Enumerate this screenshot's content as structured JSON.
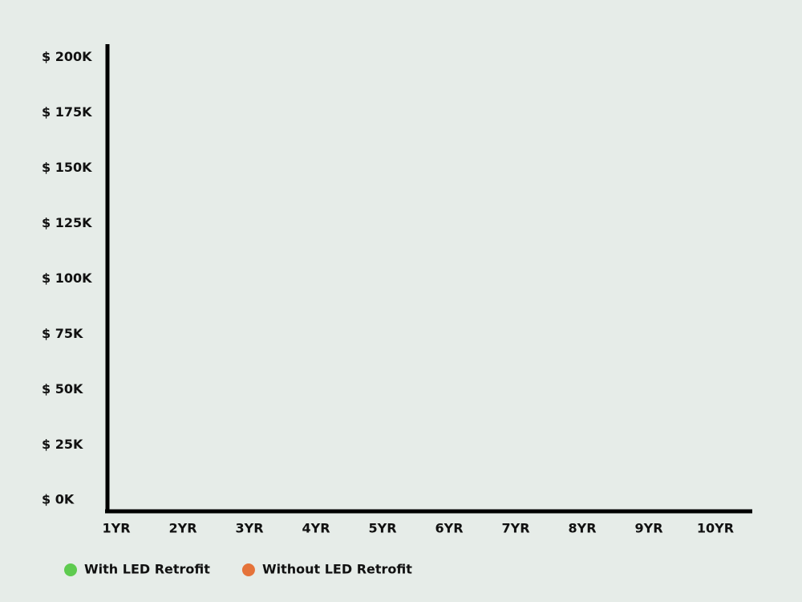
{
  "chart_data": {
    "type": "line",
    "categories": [
      "1YR",
      "2YR",
      "3YR",
      "4YR",
      "5YR",
      "6YR",
      "7YR",
      "8YR",
      "9YR",
      "10YR"
    ],
    "series": [
      {
        "name": "With LED Retrofit",
        "color": "#5ecb4f"
      },
      {
        "name": "Without LED Retrofit",
        "color": "#e5733a"
      }
    ],
    "ylim": [
      -5000,
      206000
    ],
    "yticks": [
      {
        "value": 0,
        "label": "$ 0K"
      },
      {
        "value": 25000,
        "label": "$ 25K"
      },
      {
        "value": 50000,
        "label": "$ 50K"
      },
      {
        "value": 75000,
        "label": "$ 75K"
      },
      {
        "value": 100000,
        "label": "$ 100K"
      },
      {
        "value": 125000,
        "label": "$ 125K"
      },
      {
        "value": 150000,
        "label": "$ 150K"
      },
      {
        "value": 175000,
        "label": "$ 175K"
      },
      {
        "value": 200000,
        "label": "$ 200K"
      }
    ],
    "grid": false
  }
}
